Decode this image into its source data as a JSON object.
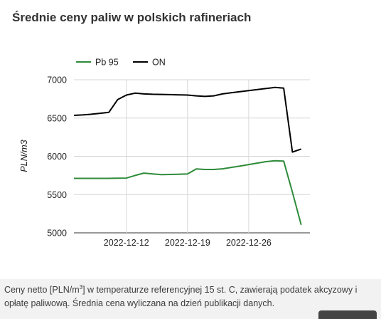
{
  "page": {
    "title": "Średnie ceny paliw w polskich rafineriach",
    "footnote_pre": "Ceny netto [PLN/m",
    "footnote_sup": "3",
    "footnote_post": "] w temperaturze referencyjnej 15 st. C, zawierają podatek akcyzowy i opłatę paliwową. Średnia cena wyliczana na dzień publikacji danych."
  },
  "chart_data": {
    "type": "line",
    "title": "Średnie ceny paliw w polskich rafineriach",
    "xlabel": "",
    "ylabel": "PLN/m3",
    "ylim": [
      5000,
      7000
    ],
    "yticks": [
      5000,
      5500,
      6000,
      6500,
      7000
    ],
    "xlim": [
      "2022-12-06",
      "2023-01-02"
    ],
    "xticks": [
      "2022-12-12",
      "2022-12-19",
      "2022-12-26"
    ],
    "grid": true,
    "legend": "top-left",
    "series": [
      {
        "name": "Pb 95",
        "color": "#2e8b3a",
        "points": [
          [
            "2022-12-06",
            5712
          ],
          [
            "2022-12-07",
            5712
          ],
          [
            "2022-12-08",
            5712
          ],
          [
            "2022-12-09",
            5712
          ],
          [
            "2022-12-10",
            5712
          ],
          [
            "2022-12-11",
            5714
          ],
          [
            "2022-12-12",
            5715
          ],
          [
            "2022-12-13",
            5750
          ],
          [
            "2022-12-14",
            5780
          ],
          [
            "2022-12-15",
            5770
          ],
          [
            "2022-12-16",
            5760
          ],
          [
            "2022-12-17",
            5763
          ],
          [
            "2022-12-18",
            5766
          ],
          [
            "2022-12-19",
            5770
          ],
          [
            "2022-12-20",
            5835
          ],
          [
            "2022-12-21",
            5828
          ],
          [
            "2022-12-22",
            5828
          ],
          [
            "2022-12-23",
            5836
          ],
          [
            "2022-12-24",
            5855
          ],
          [
            "2022-12-25",
            5873
          ],
          [
            "2022-12-26",
            5892
          ],
          [
            "2022-12-27",
            5912
          ],
          [
            "2022-12-28",
            5930
          ],
          [
            "2022-12-29",
            5942
          ],
          [
            "2022-12-30",
            5938
          ],
          [
            "2022-12-31",
            5530
          ],
          [
            "2023-01-01",
            5105
          ]
        ]
      },
      {
        "name": "ON",
        "color": "#000000",
        "points": [
          [
            "2022-12-06",
            6535
          ],
          [
            "2022-12-07",
            6540
          ],
          [
            "2022-12-08",
            6550
          ],
          [
            "2022-12-09",
            6562
          ],
          [
            "2022-12-10",
            6575
          ],
          [
            "2022-12-11",
            6740
          ],
          [
            "2022-12-12",
            6800
          ],
          [
            "2022-12-13",
            6825
          ],
          [
            "2022-12-14",
            6815
          ],
          [
            "2022-12-15",
            6810
          ],
          [
            "2022-12-16",
            6808
          ],
          [
            "2022-12-17",
            6806
          ],
          [
            "2022-12-18",
            6803
          ],
          [
            "2022-12-19",
            6800
          ],
          [
            "2022-12-20",
            6790
          ],
          [
            "2022-12-21",
            6782
          ],
          [
            "2022-12-22",
            6790
          ],
          [
            "2022-12-23",
            6815
          ],
          [
            "2022-12-24",
            6830
          ],
          [
            "2022-12-25",
            6845
          ],
          [
            "2022-12-26",
            6858
          ],
          [
            "2022-12-27",
            6872
          ],
          [
            "2022-12-28",
            6886
          ],
          [
            "2022-12-29",
            6900
          ],
          [
            "2022-12-30",
            6890
          ],
          [
            "2022-12-31",
            6055
          ],
          [
            "2023-01-01",
            6095
          ]
        ]
      }
    ]
  }
}
